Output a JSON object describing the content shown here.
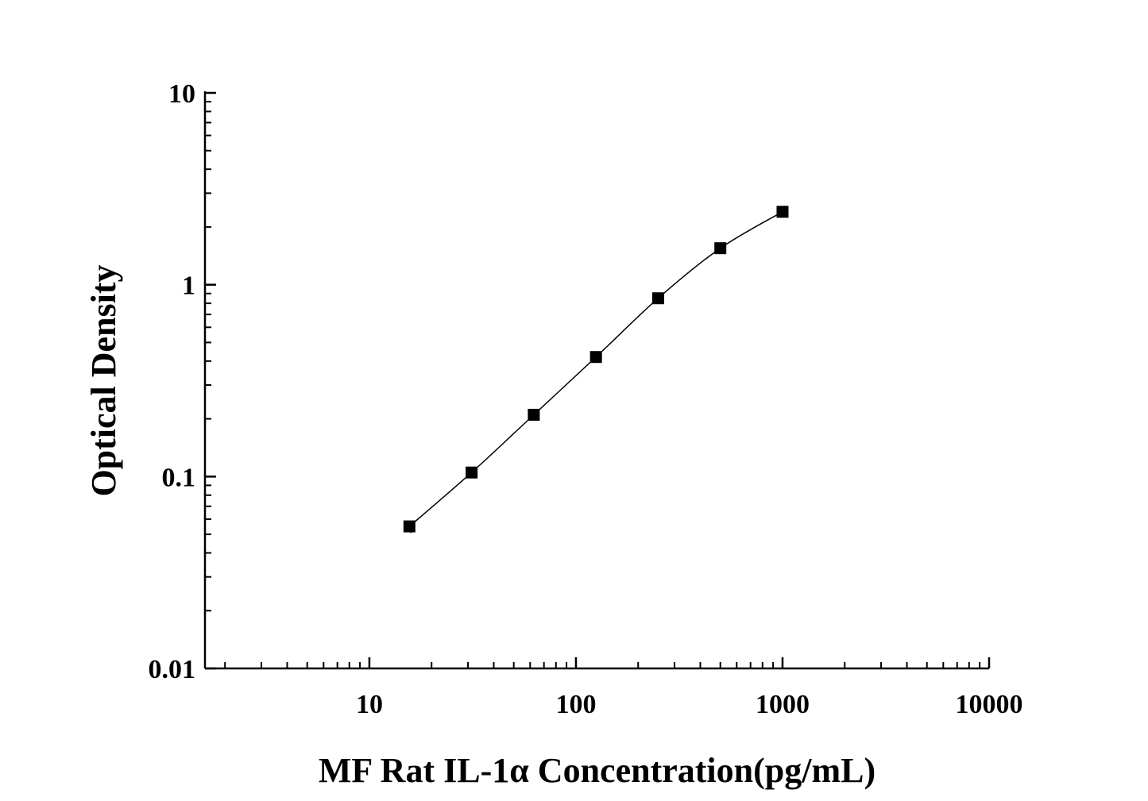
{
  "chart_data": {
    "type": "scatter",
    "xlabel": "MF Rat IL-1α Concentration(pg/mL)",
    "ylabel": "Optical Density",
    "xscale": "log",
    "yscale": "log",
    "xlim": [
      1.6,
      10000
    ],
    "ylim": [
      0.01,
      10
    ],
    "x_ticks": [
      10,
      100,
      1000,
      10000
    ],
    "x_tick_labels": [
      "10",
      "100",
      "1000",
      "10000"
    ],
    "y_ticks": [
      0.01,
      0.1,
      1,
      10
    ],
    "y_tick_labels": [
      "0.01",
      "0.1",
      "1",
      "10"
    ],
    "grid": false,
    "legend": "none",
    "marker": "square",
    "color": "#000000",
    "series": [
      {
        "x": [
          15.625,
          31.25,
          62.5,
          125,
          250,
          500,
          1000
        ],
        "y": [
          0.055,
          0.105,
          0.21,
          0.42,
          0.85,
          1.55,
          2.4
        ]
      }
    ]
  }
}
